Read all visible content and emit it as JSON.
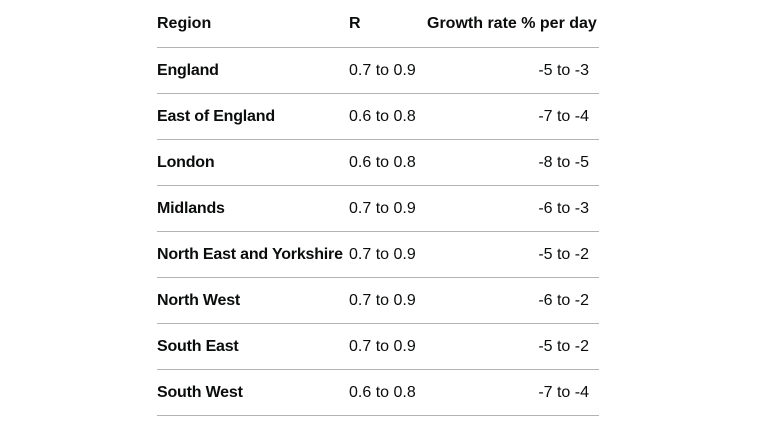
{
  "table": {
    "headers": {
      "region": "Region",
      "r": "R",
      "growth": "Growth rate % per day"
    },
    "rows": [
      {
        "region": "England",
        "r": "0.7 to 0.9",
        "growth": "-5 to -3"
      },
      {
        "region": "East of England",
        "r": "0.6 to 0.8",
        "growth": "-7 to -4"
      },
      {
        "region": "London",
        "r": "0.6 to 0.8",
        "growth": "-8 to -5"
      },
      {
        "region": "Midlands",
        "r": "0.7 to 0.9",
        "growth": "-6 to -3"
      },
      {
        "region": "North East and Yorkshire",
        "r": "0.7 to 0.9",
        "growth": "-5 to -2"
      },
      {
        "region": "North West",
        "r": "0.7 to 0.9",
        "growth": "-6 to -2"
      },
      {
        "region": "South East",
        "r": "0.7 to 0.9",
        "growth": "-5 to -2"
      },
      {
        "region": "South West",
        "r": "0.6 to 0.8",
        "growth": "-7 to -4"
      }
    ]
  },
  "colors": {
    "text": "#0b0c0c",
    "border": "#b1b4b6",
    "background": "#ffffff"
  }
}
